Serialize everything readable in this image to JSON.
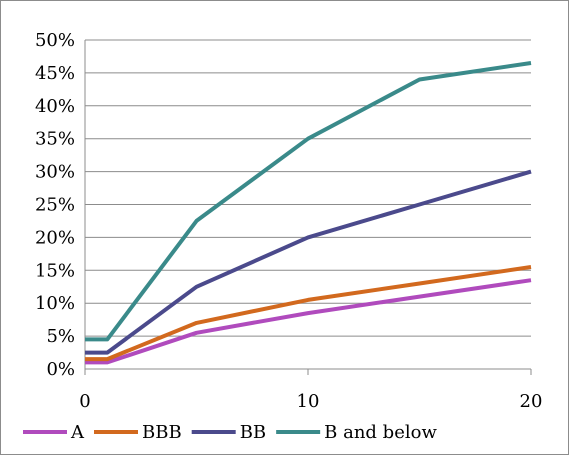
{
  "chart_data": {
    "type": "line",
    "title": "",
    "xlabel": "",
    "ylabel": "",
    "x": [
      0,
      1,
      5,
      10,
      15,
      20
    ],
    "xlim": [
      0,
      20
    ],
    "ylim": [
      0,
      50
    ],
    "x_ticks": [
      "0",
      "10",
      "20"
    ],
    "y_ticks": [
      "0%",
      "5%",
      "10%",
      "15%",
      "20%",
      "25%",
      "30%",
      "35%",
      "40%",
      "45%",
      "50%"
    ],
    "grid": "horizontal",
    "legend_position": "bottom",
    "series": [
      {
        "name": "A",
        "color": "#b04bbd",
        "values": [
          1,
          1,
          5.5,
          8.5,
          11,
          13.5
        ]
      },
      {
        "name": "BBB",
        "color": "#d2691e",
        "values": [
          1.5,
          1.5,
          7,
          10.5,
          13,
          15.5
        ]
      },
      {
        "name": "BB",
        "color": "#4b4a8c",
        "values": [
          2.5,
          2.5,
          12.5,
          20,
          25,
          30
        ]
      },
      {
        "name": "B and below",
        "color": "#3a8a8a",
        "values": [
          4.5,
          4.5,
          22.5,
          35,
          44,
          46.5
        ]
      }
    ]
  }
}
